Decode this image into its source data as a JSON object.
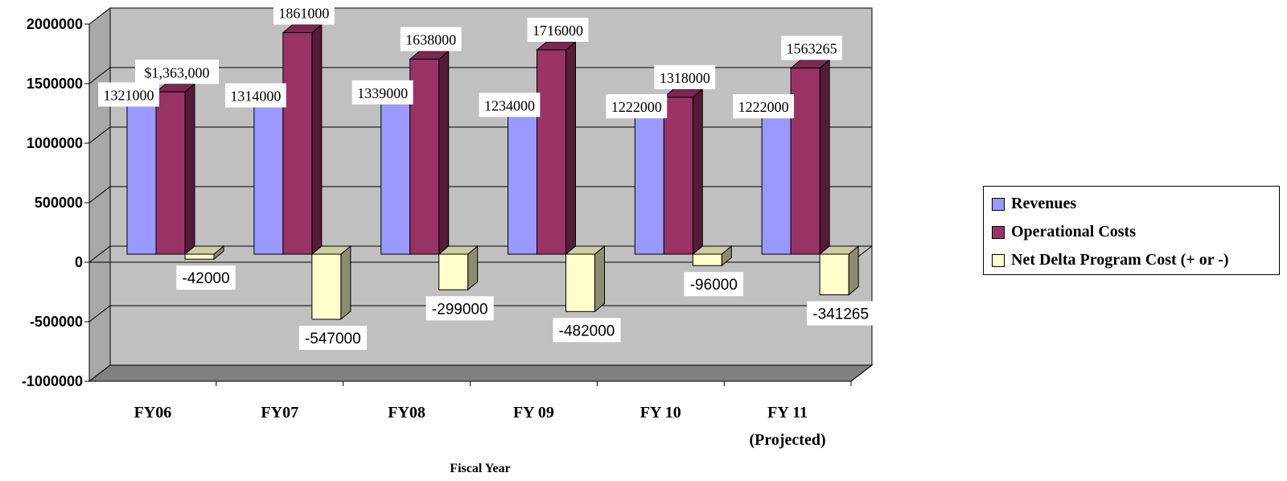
{
  "chart_data": {
    "type": "bar",
    "categories": [
      "FY06",
      "FY07",
      "FY08",
      "FY 09",
      "FY 10",
      "FY 11\n(Projected)"
    ],
    "series": [
      {
        "name": "Revenues",
        "color": "#9999ff",
        "values": [
          1321000,
          1314000,
          1339000,
          1234000,
          1222000,
          1222000
        ],
        "labels": [
          "1321000",
          "1314000",
          "1339000",
          "1234000",
          "1222000",
          "1222000"
        ]
      },
      {
        "name": "Operational Costs",
        "color": "#993366",
        "values": [
          1363000,
          1861000,
          1638000,
          1716000,
          1318000,
          1563265
        ],
        "labels": [
          "$1,363,000",
          "1861000",
          "1638000",
          "1716000",
          "1318000",
          "1563265"
        ]
      },
      {
        "name": "Net Delta Program Cost (+ or -)",
        "color": "#ffffcc",
        "values": [
          -42000,
          -547000,
          -299000,
          -482000,
          -96000,
          -341265
        ],
        "labels": [
          "-42000",
          "-547000",
          "-299000",
          "-482000",
          "-96000",
          "-341265"
        ]
      }
    ],
    "y_ticks": [
      "2000000",
      "1500000",
      "1000000",
      "500000",
      "0",
      "-500000",
      "-1000000"
    ],
    "ylim": [
      -1000000,
      2000000
    ],
    "xlabel": "Fiscal Year",
    "ylabel": "",
    "title": "",
    "grid": true,
    "three_d": true,
    "wall_color": "#c0c0c0",
    "floor_color": "#808080",
    "legend_position": "right"
  }
}
